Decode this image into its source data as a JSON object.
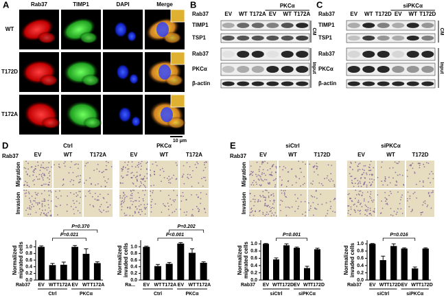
{
  "panel_a": {
    "label": "A",
    "columns": [
      "Rab37",
      "TIMP1",
      "DAPI",
      "Merge"
    ],
    "rows": [
      "WT",
      "T172D",
      "T172A"
    ],
    "scale_bar": "10 μm"
  },
  "panel_b": {
    "label": "B",
    "group": "PKCα",
    "lane_header": "Rab37",
    "lanes": [
      "EV",
      "WT",
      "T172A",
      "EV",
      "WT",
      "T172A"
    ],
    "rows": [
      "TIMP1",
      "TSP1",
      "Rab37",
      "PKCα",
      "β-actin"
    ],
    "sections": [
      "CM",
      "Input"
    ]
  },
  "panel_c": {
    "label": "C",
    "group": "siPKCα",
    "lane_header": "Rab37",
    "lanes": [
      "EV",
      "WT",
      "T172D",
      "EV",
      "WT",
      "T172D"
    ],
    "rows": [
      "TIMP1",
      "TSP1",
      "Rab37",
      "PKCα",
      "β-actin"
    ],
    "sections": [
      "CM",
      "Input"
    ]
  },
  "panel_d": {
    "label": "D",
    "groups": [
      "Ctrl",
      "PKCα"
    ],
    "lane_header": "Rab37",
    "lanes": [
      "EV",
      "WT",
      "T172A",
      "EV",
      "WT",
      "T172A"
    ],
    "rows": [
      "Migration",
      "Invasion"
    ]
  },
  "panel_e": {
    "label": "E",
    "groups": [
      "siCtrl",
      "siPKCα"
    ],
    "lane_header": "Rab37",
    "lanes": [
      "EV",
      "WT",
      "T172D",
      "EV",
      "WT",
      "T172D"
    ],
    "rows": [
      "Migration",
      "Invasion"
    ]
  },
  "chart_data": [
    {
      "type": "bar",
      "ylabel": [
        "Normalized",
        "migrated cells"
      ],
      "x_header": "Rab37",
      "categories": [
        "EV",
        "WT",
        "T172A",
        "EV",
        "WT",
        "T172A"
      ],
      "groups": [
        "Ctrl",
        "PKCα"
      ],
      "values": [
        1.0,
        0.45,
        0.46,
        1.0,
        0.79,
        0.51
      ],
      "errors": [
        0.03,
        0.05,
        0.08,
        0.04,
        0.15,
        0.04
      ],
      "color": "#000000",
      "ylim": [
        0,
        1.2
      ],
      "yticks": [
        {
          "value": 0,
          "label": "0.0"
        },
        0.2,
        0.4,
        0.6,
        0.8,
        {
          "value": 1,
          "label": "1.0"
        }
      ],
      "annotations": [
        "P=0.021",
        "P=0.370"
      ]
    },
    {
      "type": "bar",
      "ylabel": [
        "Normalized",
        "invaded cells"
      ],
      "x_header": "Ra...",
      "categories": [
        "EV",
        "WT",
        "T172A",
        "EV",
        "WT",
        "T172A"
      ],
      "groups": [
        "Ctrl",
        "PKCα"
      ],
      "values": [
        1.0,
        0.42,
        0.49,
        1.1,
        0.82,
        0.52
      ],
      "errors": [
        0.02,
        0.05,
        0.04,
        0.03,
        0.12,
        0.03
      ],
      "color": "#000000",
      "ylim": [
        0,
        1.2
      ],
      "yticks": [
        {
          "value": 0,
          "label": "0.0"
        },
        0.2,
        0.4,
        0.6,
        0.8,
        {
          "value": 1,
          "label": "1.0"
        }
      ],
      "annotations": [
        "P<0.001",
        "P=0.202"
      ]
    },
    {
      "type": "bar",
      "ylabel": [
        "Normalized",
        "migrated cells"
      ],
      "x_header": "Rab37",
      "categories": [
        "EV",
        "WT",
        "T172D",
        "EV",
        "WT",
        "T172D"
      ],
      "groups": [
        "siCtrl",
        "siPKCα"
      ],
      "values": [
        1.0,
        0.57,
        0.96,
        0.89,
        0.33,
        0.85
      ],
      "errors": [
        0.01,
        0.04,
        0.04,
        0.02,
        0.05,
        0.03
      ],
      "color": "#000000",
      "ylim": [
        0,
        1.1
      ],
      "yticks": [
        {
          "value": 0,
          "label": "0.0"
        },
        0.2,
        0.4,
        0.6,
        0.8,
        {
          "value": 1,
          "label": "1.0"
        }
      ],
      "annotations": [
        "P=0.001"
      ]
    },
    {
      "type": "bar",
      "ylabel": [
        "Normalized",
        "invaded cells"
      ],
      "x_header": "Rab37",
      "categories": [
        "EV",
        "WT",
        "T172D",
        "EV",
        "WT",
        "T172D"
      ],
      "groups": [
        "siCtrl",
        "siPKCα"
      ],
      "values": [
        1.0,
        0.55,
        0.94,
        0.87,
        0.32,
        0.87
      ],
      "errors": [
        0.01,
        0.11,
        0.06,
        0.02,
        0.04,
        0.02
      ],
      "color": "#000000",
      "ylim": [
        0,
        1.1
      ],
      "yticks": [
        {
          "value": 0,
          "label": "0.0"
        },
        0.2,
        0.4,
        0.6,
        0.8,
        {
          "value": 1,
          "label": "1.0"
        }
      ],
      "annotations": [
        "P=0.016"
      ]
    }
  ]
}
